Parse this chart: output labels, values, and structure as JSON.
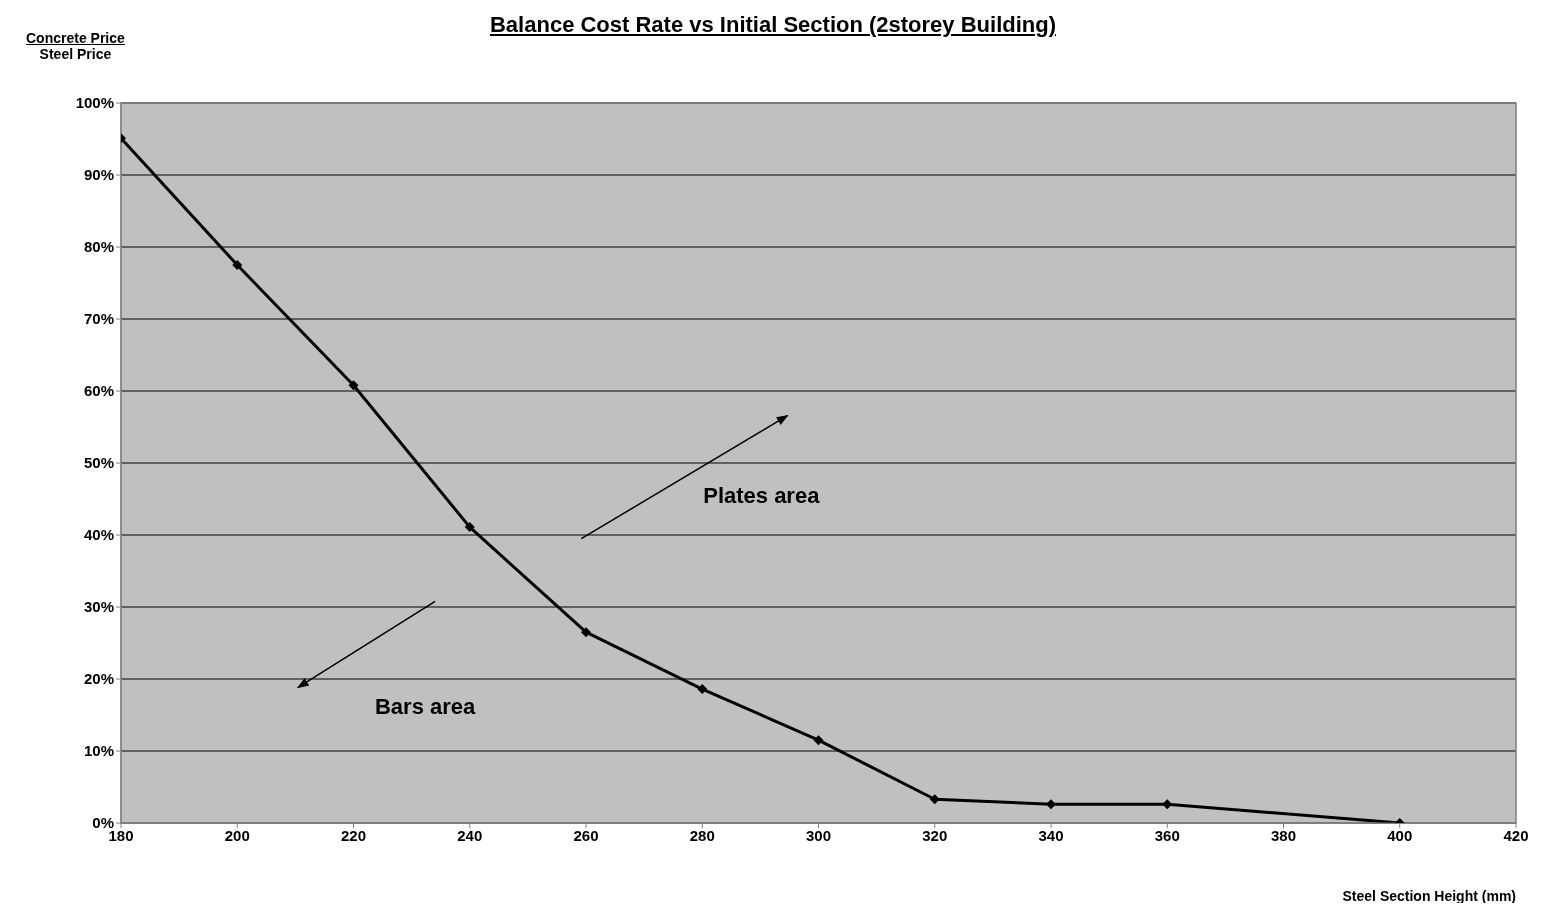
{
  "chart_data": {
    "type": "line",
    "title": "Balance Cost Rate vs Initial Section (2storey Building)",
    "xlabel": "Steel Section Height (mm)",
    "ylabel": "Concrete Price\nSteel Price",
    "x": [
      180,
      200,
      220,
      240,
      260,
      280,
      300,
      320,
      340,
      360,
      400
    ],
    "series": [
      {
        "color": "#000000",
        "values": [
          95.1,
          77.5,
          60.8,
          41.1,
          26.5,
          18.6,
          11.5,
          3.3,
          2.6,
          2.6,
          0
        ]
      }
    ],
    "xlim": [
      180,
      420
    ],
    "xticks": [
      180,
      200,
      220,
      240,
      260,
      280,
      300,
      320,
      340,
      360,
      380,
      400,
      420
    ],
    "ylim": [
      0,
      100
    ],
    "yticks": [
      {
        "value": 0,
        "label": "0%"
      },
      {
        "value": 10,
        "label": "10%"
      },
      {
        "value": 20,
        "label": "20%"
      },
      {
        "value": 30,
        "label": "30%"
      },
      {
        "value": 40,
        "label": "40%"
      },
      {
        "value": 50,
        "label": "50%"
      },
      {
        "value": 60,
        "label": "60%"
      },
      {
        "value": 70,
        "label": "70%"
      },
      {
        "value": 80,
        "label": "80%"
      },
      {
        "value": 90,
        "label": "90%"
      },
      {
        "value": 100,
        "label": "100%"
      }
    ],
    "annotations": [
      "Plates area",
      "Bars area"
    ],
    "grid": "y",
    "marker": "diamond",
    "line_style": "solid"
  }
}
